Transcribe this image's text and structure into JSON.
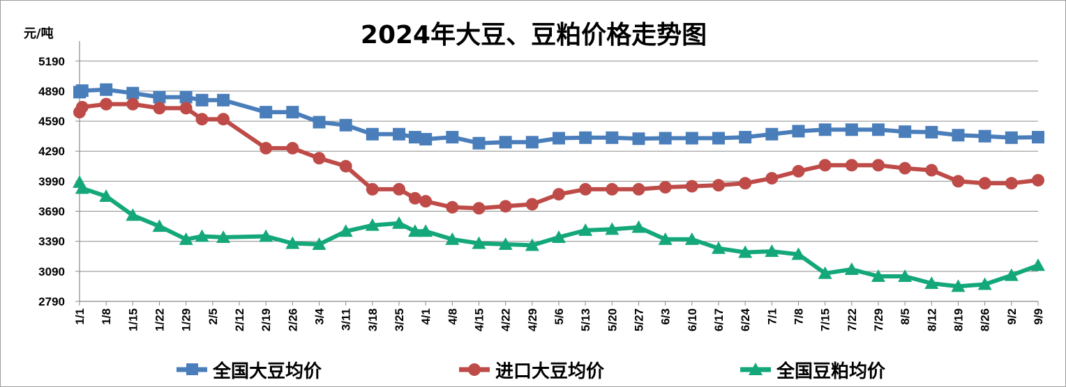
{
  "chart_data": {
    "type": "line",
    "title": "2024年大豆、豆粕价格走势图",
    "y_unit": "元/吨",
    "ylim": [
      2790,
      5390
    ],
    "y_ticks": [
      2790,
      3090,
      3390,
      3690,
      3990,
      4290,
      4590,
      4890,
      5190
    ],
    "grid": true,
    "legend_position": "bottom",
    "x_tick_labels": [
      "1/1",
      "1/8",
      "1/15",
      "1/22",
      "1/29",
      "2/5",
      "2/12",
      "2/19",
      "2/26",
      "3/4",
      "3/11",
      "3/18",
      "3/25",
      "4/1",
      "4/8",
      "4/15",
      "4/22",
      "4/29",
      "5/6",
      "5/13",
      "5/20",
      "5/27",
      "6/3",
      "6/10",
      "6/17",
      "6/24",
      "7/1",
      "7/8",
      "7/15",
      "7/22",
      "7/29",
      "8/5",
      "8/12",
      "8/19",
      "8/26",
      "9/2",
      "9/9"
    ],
    "series": [
      {
        "name": "全国大豆均价",
        "color": "#4a7ebb",
        "marker": "square",
        "x": [
          0,
          0.1,
          1,
          2,
          3,
          4,
          4.6,
          5.4,
          7,
          8,
          9,
          10,
          11,
          12,
          12.6,
          13,
          14,
          15,
          16,
          17,
          18,
          19,
          20,
          21,
          22,
          23,
          24,
          25,
          26,
          27,
          28,
          29,
          30,
          31,
          32,
          33,
          34,
          35,
          36
        ],
        "values": [
          4880,
          4895,
          4905,
          4870,
          4830,
          4830,
          4800,
          4800,
          4680,
          4680,
          4580,
          4550,
          4460,
          4460,
          4430,
          4410,
          4430,
          4370,
          4380,
          4380,
          4420,
          4425,
          4425,
          4415,
          4420,
          4420,
          4420,
          4430,
          4460,
          4490,
          4505,
          4505,
          4505,
          4485,
          4480,
          4450,
          4440,
          4425,
          4430
        ]
      },
      {
        "name": "进口大豆均价",
        "color": "#be4b48",
        "marker": "circle",
        "x": [
          0,
          0.1,
          1,
          2,
          3,
          4,
          4.6,
          5.4,
          7,
          8,
          9,
          10,
          11,
          12,
          12.6,
          13,
          14,
          15,
          16,
          17,
          18,
          19,
          20,
          21,
          22,
          23,
          24,
          25,
          26,
          27,
          28,
          29,
          30,
          31,
          32,
          33,
          34,
          35,
          36
        ],
        "values": [
          4680,
          4730,
          4760,
          4760,
          4720,
          4720,
          4610,
          4610,
          4320,
          4320,
          4220,
          4140,
          3910,
          3910,
          3820,
          3790,
          3730,
          3720,
          3740,
          3760,
          3860,
          3910,
          3910,
          3910,
          3930,
          3940,
          3950,
          3970,
          4020,
          4090,
          4150,
          4150,
          4150,
          4120,
          4100,
          3990,
          3970,
          3970,
          4000
        ]
      },
      {
        "name": "全国豆粕均价",
        "color": "#13a77a",
        "marker": "triangle",
        "x": [
          0,
          0.1,
          1,
          2,
          3,
          4,
          4.6,
          5.4,
          7,
          8,
          9,
          10,
          11,
          12,
          12.6,
          13,
          14,
          15,
          16,
          17,
          18,
          19,
          20,
          21,
          22,
          23,
          24,
          25,
          26,
          27,
          28,
          29,
          30,
          31,
          32,
          33,
          34,
          35,
          36
        ],
        "values": [
          3980,
          3920,
          3840,
          3650,
          3540,
          3410,
          3440,
          3430,
          3440,
          3370,
          3360,
          3490,
          3550,
          3570,
          3490,
          3490,
          3410,
          3370,
          3360,
          3350,
          3430,
          3500,
          3510,
          3530,
          3410,
          3410,
          3320,
          3280,
          3290,
          3260,
          3070,
          3110,
          3040,
          3040,
          2970,
          2940,
          2960,
          3050,
          3150
        ]
      }
    ]
  }
}
